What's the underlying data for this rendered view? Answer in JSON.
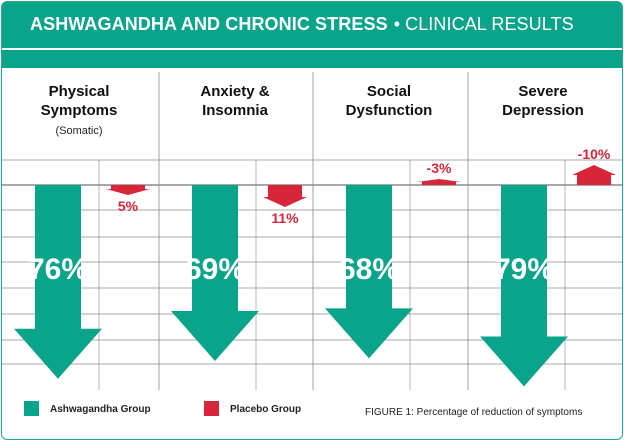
{
  "title": {
    "main": "ASHWAGANDHA AND CHRONIC STRESS",
    "separator": "•",
    "sub": "CLINICAL RESULTS"
  },
  "colors": {
    "brand": "#0aa48a",
    "ashwagandha": "#0aa48a",
    "placebo": "#d7263a",
    "grid": "#8c8c8c"
  },
  "chart_data": {
    "type": "bar",
    "title": "ASHWAGANDHA AND CHRONIC STRESS • CLINICAL RESULTS",
    "xlabel": "",
    "ylabel": "Percentage of reduction of symptoms",
    "categories": [
      {
        "title": "Physical Symptoms",
        "subtitle": "(Somatic)"
      },
      {
        "title": "Anxiety & Insomnia",
        "subtitle": ""
      },
      {
        "title": "Social Dysfunction",
        "subtitle": ""
      },
      {
        "title": "Severe Depression",
        "subtitle": ""
      }
    ],
    "series": [
      {
        "name": "Ashwagandha Group",
        "values": [
          76,
          69,
          68,
          79
        ],
        "labels": [
          "76%",
          "69%",
          "68%",
          "79%"
        ]
      },
      {
        "name": "Placebo Group",
        "values": [
          5,
          11,
          -3,
          -10
        ],
        "labels": [
          "5%",
          "11%",
          "-3%",
          "-10%"
        ]
      }
    ],
    "ylim": [
      -15,
      80
    ],
    "legend_position": "bottom-left"
  },
  "legend": {
    "ashwagandha_label": "Ashwagandha Group",
    "placebo_label": "Placebo Group"
  },
  "caption": "FIGURE 1: Percentage of reduction of symptoms"
}
